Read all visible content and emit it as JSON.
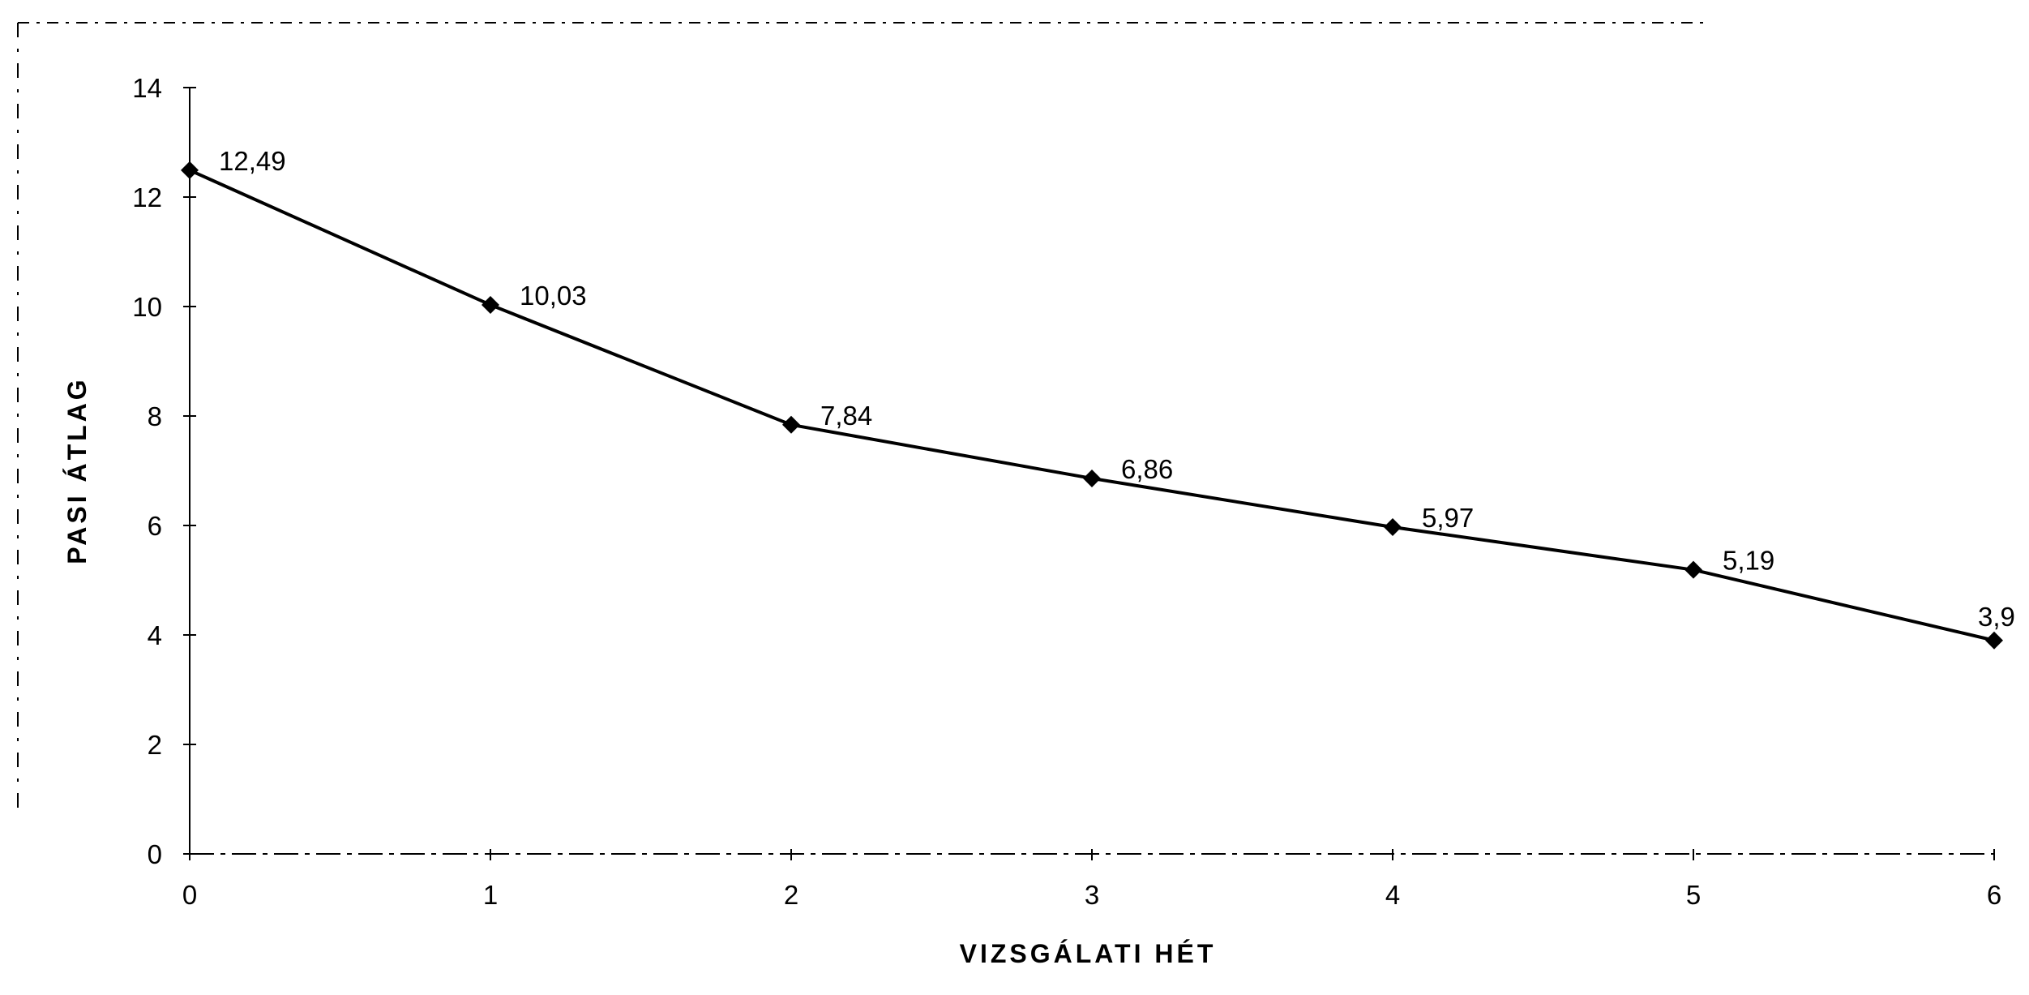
{
  "chart_data": {
    "type": "line",
    "title": "",
    "xlabel": "VIZSGÁLATI HÉT",
    "ylabel": "PASI ÁTLAG",
    "x": [
      0,
      1,
      2,
      3,
      4,
      5,
      6
    ],
    "series": [
      {
        "values": [
          12.49,
          10.03,
          7.84,
          6.86,
          5.97,
          5.19,
          3.9
        ],
        "data_labels": [
          "12,49",
          "10,03",
          "7,84",
          "6,86",
          "5,97",
          "5,19",
          "3,9"
        ]
      }
    ],
    "xlim": [
      0,
      6
    ],
    "ylim": [
      0,
      14
    ],
    "x_ticks": [
      "0",
      "1",
      "2",
      "3",
      "4",
      "5",
      "6"
    ],
    "y_ticks": [
      "0",
      "2",
      "4",
      "6",
      "8",
      "10",
      "12",
      "14"
    ],
    "grid": false,
    "legend": "none",
    "marker": "diamond",
    "line_color": "#000000"
  }
}
